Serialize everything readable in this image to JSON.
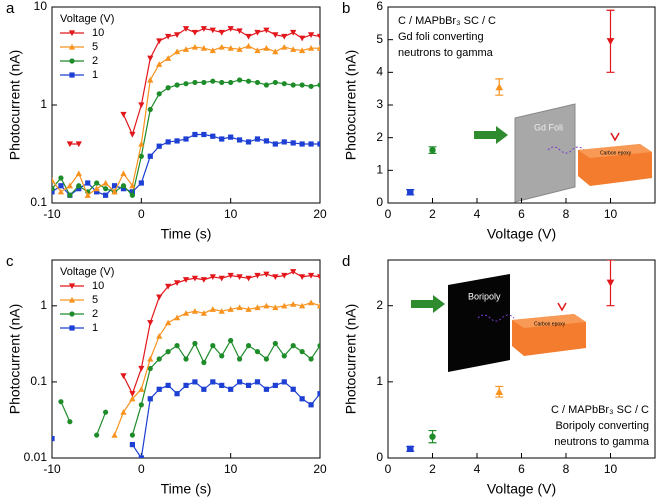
{
  "chart_data": [
    {
      "type": "line",
      "label": "a",
      "xlabel": "Time (s)",
      "ylabel": "Photocurrent (nA)",
      "yscale": "log",
      "xlim": [
        -10,
        20
      ],
      "xticks": [
        -10,
        0,
        10,
        20
      ],
      "ylim": [
        0.1,
        10
      ],
      "yticks": [
        0.1,
        1,
        10
      ],
      "legend_title": "Voltage (V)",
      "legend": "upper left",
      "x": [
        -10,
        -9,
        -8,
        -7,
        -6,
        -5,
        -4,
        -3,
        -2,
        -1,
        0,
        1,
        2,
        3,
        4,
        5,
        6,
        7,
        8,
        9,
        10,
        11,
        12,
        13,
        14,
        15,
        16,
        17,
        18,
        19,
        20
      ],
      "series": [
        {
          "name": "10",
          "color": "#e3161c",
          "marker": "triangle-down",
          "values": [
            null,
            null,
            0.4,
            0.4,
            null,
            null,
            null,
            null,
            0.8,
            0.5,
            1,
            3,
            4.5,
            5,
            5.2,
            6,
            5.5,
            6,
            5.8,
            5.5,
            6,
            5.7,
            5,
            5.5,
            5.8,
            5.2,
            5,
            5.5,
            4.8,
            5.2,
            5
          ]
        },
        {
          "name": "5",
          "color": "#f7931e",
          "marker": "triangle-up",
          "values": [
            0.17,
            0.13,
            0.15,
            0.2,
            0.12,
            0.14,
            0.16,
            0.13,
            0.2,
            0.15,
            0.4,
            1.8,
            2.6,
            3,
            3.5,
            3.7,
            3.9,
            3.8,
            3.6,
            3.9,
            3.8,
            3.7,
            4,
            3.6,
            3.8,
            3.5,
            3.9,
            3.7,
            3.6,
            3.8,
            3.8
          ]
        },
        {
          "name": "2",
          "color": "#1f8c2a",
          "marker": "circle",
          "values": [
            0.14,
            0.18,
            0.12,
            0.15,
            0.13,
            0.16,
            0.14,
            0.13,
            0.15,
            0.12,
            0.3,
            0.9,
            1.3,
            1.5,
            1.6,
            1.65,
            1.7,
            1.7,
            1.75,
            1.7,
            1.7,
            1.8,
            1.75,
            1.7,
            1.6,
            1.7,
            1.65,
            1.6,
            1.6,
            1.55,
            1.6
          ]
        },
        {
          "name": "1",
          "color": "#1d3fd3",
          "marker": "square",
          "values": [
            0.13,
            0.15,
            0.12,
            0.14,
            0.16,
            0.13,
            0.12,
            0.15,
            0.14,
            0.13,
            0.16,
            0.3,
            0.38,
            0.42,
            0.43,
            0.45,
            0.5,
            0.5,
            0.48,
            0.45,
            0.47,
            0.44,
            0.42,
            0.45,
            0.43,
            0.4,
            0.42,
            0.41,
            0.4,
            0.4,
            0.4
          ]
        }
      ]
    },
    {
      "type": "scatter",
      "label": "b",
      "xlabel": "Voltage (V)",
      "ylabel": "Photocurrent (nA)",
      "xlim": [
        0,
        12
      ],
      "xticks": [
        0,
        2,
        4,
        6,
        8,
        10
      ],
      "ylim": [
        0,
        6
      ],
      "yticks": [
        0,
        1,
        2,
        3,
        4,
        5,
        6
      ],
      "annotations": [
        "C / MAPbBr₃ SC / C",
        "Gd foli converting",
        "neutrons to gamma"
      ],
      "annotation_position": "upper left",
      "foil_label": "Gd Foli",
      "box_label": "Carbon epoxy",
      "x": [
        1,
        2,
        5,
        10
      ],
      "values": [
        0.33,
        1.62,
        3.55,
        4.95
      ],
      "errors": [
        0.08,
        0.1,
        0.25,
        0.95
      ],
      "colors": [
        "#1d3fd3",
        "#1f8c2a",
        "#f7931e",
        "#e3161c"
      ],
      "markers": [
        "square",
        "circle",
        "triangle-up",
        "triangle-down"
      ]
    },
    {
      "type": "line",
      "label": "c",
      "xlabel": "Time (s)",
      "ylabel": "Photocurrent (nA)",
      "yscale": "log",
      "xlim": [
        -10,
        20
      ],
      "xticks": [
        -10,
        0,
        10,
        20
      ],
      "ylim": [
        0.01,
        4
      ],
      "yticks": [
        0.01,
        0.1,
        1
      ],
      "legend_title": "Voltage (V)",
      "legend": "upper left",
      "x": [
        -10,
        -9,
        -8,
        -7,
        -6,
        -5,
        -4,
        -3,
        -2,
        -1,
        0,
        1,
        2,
        3,
        4,
        5,
        6,
        7,
        8,
        9,
        10,
        11,
        12,
        13,
        14,
        15,
        16,
        17,
        18,
        19,
        20
      ],
      "series": [
        {
          "name": "10",
          "color": "#e3161c",
          "marker": "triangle-down",
          "values": [
            null,
            null,
            null,
            null,
            null,
            null,
            null,
            null,
            0.12,
            0.07,
            0.15,
            0.6,
            1.3,
            1.8,
            2,
            2.2,
            2.3,
            2.2,
            2.4,
            2.3,
            2.5,
            2.4,
            2.3,
            2.5,
            2.6,
            2.4,
            2.5,
            2.8,
            2.4,
            2.5,
            2.4
          ]
        },
        {
          "name": "5",
          "color": "#f7931e",
          "marker": "triangle-up",
          "values": [
            null,
            null,
            null,
            null,
            null,
            null,
            null,
            0.02,
            0.04,
            0.06,
            0.08,
            0.2,
            0.4,
            0.6,
            0.7,
            0.8,
            0.85,
            0.8,
            0.9,
            0.85,
            0.9,
            0.95,
            0.9,
            0.95,
            1,
            0.95,
            1,
            1.05,
            1,
            1.1,
            1
          ]
        },
        {
          "name": "2",
          "color": "#1f8c2a",
          "marker": "circle",
          "values": [
            null,
            0.055,
            0.03,
            null,
            null,
            0.02,
            0.04,
            null,
            null,
            0.02,
            0.05,
            0.15,
            0.2,
            0.25,
            0.3,
            0.2,
            0.32,
            0.18,
            0.3,
            0.22,
            0.35,
            0.2,
            0.3,
            0.25,
            0.2,
            0.32,
            0.22,
            0.3,
            0.25,
            0.2,
            0.3
          ]
        },
        {
          "name": "1",
          "color": "#1d3fd3",
          "marker": "square",
          "values": [
            0.018,
            null,
            null,
            null,
            null,
            null,
            null,
            null,
            null,
            0.015,
            0.01,
            0.06,
            0.08,
            0.09,
            0.07,
            0.09,
            0.1,
            0.08,
            0.1,
            0.09,
            0.08,
            0.1,
            0.09,
            0.1,
            0.08,
            0.09,
            0.1,
            0.08,
            0.06,
            0.05,
            0.07
          ]
        }
      ]
    },
    {
      "type": "scatter",
      "label": "d",
      "xlabel": "Voltage (V)",
      "ylabel": "Photocurrent (nA)",
      "xlim": [
        0,
        12
      ],
      "xticks": [
        0,
        2,
        4,
        6,
        8,
        10
      ],
      "ylim": [
        0,
        2.6
      ],
      "yticks": [
        0,
        1,
        2
      ],
      "annotations": [
        "C / MAPbBr₃ SC / C",
        "Boripoly converting",
        "neutrons to gamma"
      ],
      "annotation_position": "lower right",
      "foil_label": "Boripoly",
      "box_label": "Carbon epoxy",
      "x": [
        1,
        2,
        5,
        10
      ],
      "values": [
        0.12,
        0.28,
        0.87,
        2.3
      ],
      "errors": [
        0.03,
        0.08,
        0.07,
        0.3
      ],
      "colors": [
        "#1d3fd3",
        "#1f8c2a",
        "#f7931e",
        "#e3161c"
      ],
      "markers": [
        "square",
        "circle",
        "triangle-up",
        "triangle-down"
      ]
    }
  ]
}
